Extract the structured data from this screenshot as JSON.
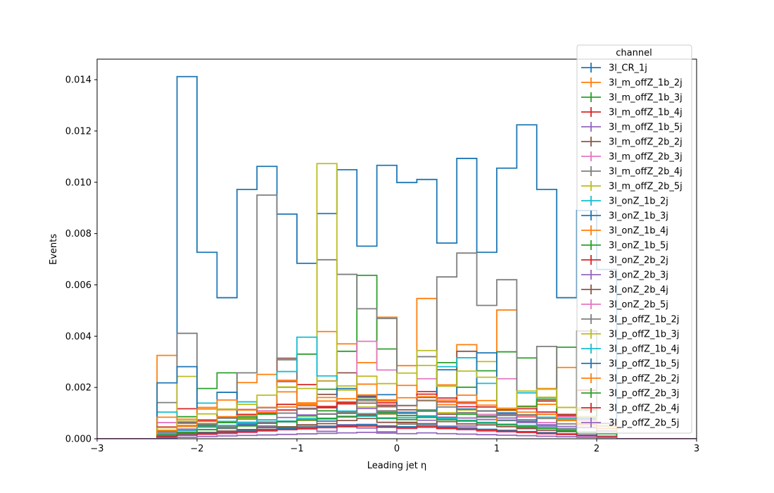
{
  "chart_data": {
    "type": "line",
    "title": "",
    "xlabel": "Leading jet  η",
    "ylabel": "Events",
    "xlim": [
      -3,
      3
    ],
    "ylim": [
      0,
      0.0148
    ],
    "grid": false,
    "legend_title": "channel",
    "legend_position": "top-right",
    "xticks": [
      -3,
      -2,
      -1,
      0,
      1,
      2,
      3
    ],
    "xtick_labels": [
      "−3",
      "−2",
      "−1",
      "0",
      "1",
      "2",
      "3"
    ],
    "yticks": [
      0,
      0.002,
      0.004,
      0.006,
      0.008,
      0.01,
      0.012,
      0.014
    ],
    "ytick_labels": [
      "0.000",
      "0.002",
      "0.004",
      "0.006",
      "0.008",
      "0.010",
      "0.012",
      "0.014"
    ],
    "bin_edges": [
      -3.0,
      -2.8,
      -2.6,
      -2.4,
      -2.2,
      -2.0,
      -1.8,
      -1.6,
      -1.4,
      -1.2,
      -1.0,
      -0.8,
      -0.6,
      -0.4,
      -0.2,
      0.0,
      0.2,
      0.4,
      0.6,
      0.8,
      1.0,
      1.2,
      1.4,
      1.6,
      1.8,
      2.0,
      2.2,
      2.4,
      2.6,
      2.8,
      3.0
    ],
    "series": [
      {
        "name": "3l_CR_1j",
        "color": "#1f77b4",
        "values": [
          0,
          0,
          0,
          0,
          0.01412,
          0.00727,
          0.0055,
          0.00972,
          0.01062,
          0.00876,
          0.00684,
          0.00878,
          0.01049,
          0.00751,
          0.01066,
          0.00999,
          0.01011,
          0.00763,
          0.01093,
          0.00727,
          0.01055,
          0.01224,
          0.00972,
          0.0055,
          0.0089,
          0.0066,
          0,
          0,
          0,
          0
        ]
      },
      {
        "name": "3l_m_offZ_1b_2j",
        "color": "#ff7f0e",
        "values": [
          0,
          0,
          0,
          0.00325,
          0.00076,
          0.00122,
          0.00113,
          0.00219,
          0.00251,
          0.00183,
          0.00135,
          0.00418,
          0.0037,
          0.00297,
          0.00474,
          0.00285,
          0.00547,
          0.0021,
          0.00367,
          0.00149,
          0.00502,
          0.0009,
          0.00196,
          0.00278,
          0.0012,
          0.0004,
          0,
          0,
          0,
          0
        ]
      },
      {
        "name": "3l_m_offZ_1b_3j",
        "color": "#2ca02c",
        "values": [
          0,
          0,
          0,
          0.00031,
          0.00086,
          0.00196,
          0.00257,
          0.00077,
          0.00049,
          0.00201,
          0.0033,
          0.00193,
          0.00341,
          0.00637,
          0.0035,
          0.00091,
          0.0015,
          0.00297,
          0.00201,
          0.00265,
          0.00339,
          0.00315,
          0.0016,
          0.00357,
          0.00076,
          0.0005,
          0,
          0,
          0,
          0
        ]
      },
      {
        "name": "3l_m_offZ_1b_4j",
        "color": "#d62728",
        "values": [
          0,
          0,
          0,
          0.0002,
          0.00117,
          0.00055,
          0.00063,
          0.00114,
          0.00122,
          0.00112,
          0.00211,
          0.00121,
          0.00136,
          0.00094,
          0.0014,
          0.00064,
          0.00184,
          0.00144,
          0.00125,
          0.00108,
          0.00071,
          0.00049,
          0.00147,
          0.00089,
          0.00189,
          0.0006,
          0,
          0,
          0,
          0
        ]
      },
      {
        "name": "3l_m_offZ_1b_5j",
        "color": "#9467bd",
        "values": [
          0,
          0,
          0,
          0.00012,
          0.0005,
          0.00036,
          0.0002,
          0.00036,
          0.0005,
          0.00223,
          0.00042,
          0.00029,
          0.00055,
          0.00042,
          0.00027,
          0.00075,
          0.00072,
          0.00045,
          0.0005,
          0.00075,
          0.00081,
          0.0004,
          0.0005,
          0.00036,
          0.00073,
          0.0003,
          0,
          0,
          0,
          0
        ]
      },
      {
        "name": "3l_m_offZ_2b_2j",
        "color": "#8c564b",
        "values": [
          0,
          0,
          0,
          0.00018,
          0.00032,
          0.00048,
          0.00027,
          0.00036,
          0.00044,
          0.00314,
          0.00129,
          0.00173,
          0.00257,
          0.00139,
          0.00125,
          0.00113,
          0.00161,
          0.00096,
          0.00341,
          0.00087,
          0.00096,
          0.00042,
          0.00104,
          0.00071,
          0.00045,
          0.0003,
          0,
          0,
          0,
          0
        ]
      },
      {
        "name": "3l_m_offZ_2b_3j",
        "color": "#e377c2",
        "values": [
          0,
          0,
          0,
          0.00063,
          0.00038,
          0.00074,
          0.00051,
          0.00059,
          0.00109,
          0.00041,
          0.00071,
          0.00226,
          0.00088,
          0.0038,
          0.00268,
          0.00057,
          0.00234,
          0.0005,
          0.00137,
          0.00095,
          0.00234,
          0.00085,
          0.00063,
          0.00086,
          0.00071,
          0.0004,
          0,
          0,
          0,
          0
        ]
      },
      {
        "name": "3l_m_offZ_2b_4j",
        "color": "#7f7f7f",
        "values": [
          0,
          0,
          0,
          0.00141,
          0.00411,
          0.00036,
          0.00048,
          0.00257,
          0.0095,
          0.00308,
          0.00049,
          0.00698,
          0.00641,
          0.00507,
          0.00469,
          0.00057,
          0.0032,
          0.00631,
          0.00724,
          0.0052,
          0.0062,
          0.00074,
          0.0036,
          0.0004,
          0.0042,
          0.0004,
          0,
          0,
          0,
          0
        ]
      },
      {
        "name": "3l_m_offZ_2b_5j",
        "color": "#bcbd22",
        "values": [
          0,
          0,
          0,
          0.00045,
          0.00243,
          0.00058,
          0.00084,
          0.00081,
          0.00063,
          0.0004,
          0.00072,
          0.01073,
          0.0019,
          0.00124,
          0.00096,
          0.00046,
          0.00344,
          0.00102,
          0.00112,
          0.00301,
          0.0011,
          0.00124,
          0.00193,
          0.00122,
          0.0006,
          0.0004,
          0,
          0,
          0,
          0
        ]
      },
      {
        "name": "3l_onZ_1b_2j",
        "color": "#17becf",
        "values": [
          0,
          0,
          0,
          0.00104,
          0.00065,
          0.00139,
          0.00068,
          0.00144,
          0.001,
          0.00262,
          0.00396,
          0.00245,
          0.00108,
          0.00088,
          0.00106,
          0.00104,
          0.0011,
          0.00281,
          0.00316,
          0.00216,
          0.00073,
          0.00179,
          0.00084,
          0.0008,
          0.00083,
          0.0005,
          0,
          0,
          0,
          0
        ]
      },
      {
        "name": "3l_onZ_1b_3j",
        "color": "#1f77b4",
        "values": [
          0,
          0,
          0,
          0.00218,
          0.00281,
          0.00058,
          0.00181,
          0.00054,
          0.00121,
          0.00066,
          0.00116,
          0.00069,
          0.00196,
          0.00166,
          0.00172,
          0.00101,
          0.00089,
          0.00269,
          0.00116,
          0.00335,
          0.00101,
          0.00068,
          0.00095,
          0.00031,
          0.0008,
          0.0004,
          0,
          0,
          0,
          0
        ]
      },
      {
        "name": "3l_onZ_1b_4j",
        "color": "#ff7f0e",
        "values": [
          0,
          0,
          0,
          0.00084,
          0.00052,
          0.00116,
          0.00151,
          0.00112,
          0.00122,
          0.00228,
          0.00131,
          0.00161,
          0.00144,
          0.00213,
          0.00147,
          0.00208,
          0.00148,
          0.00133,
          0.0017,
          0.00108,
          0.00054,
          0.00126,
          0.00134,
          0.00071,
          0.00062,
          0.0003,
          0,
          0,
          0,
          0
        ]
      },
      {
        "name": "3l_onZ_1b_5j",
        "color": "#2ca02c",
        "values": [
          0,
          0,
          0,
          0.00031,
          0.00048,
          0.00051,
          0.00063,
          0.00085,
          0.00096,
          0.00047,
          0.00089,
          0.00109,
          0.00099,
          0.00154,
          0.00102,
          0.00091,
          0.00112,
          0.00081,
          0.00096,
          0.00089,
          0.00091,
          0.00127,
          0.00153,
          0.00093,
          0.00113,
          0.0004,
          0,
          0,
          0,
          0
        ]
      },
      {
        "name": "3l_onZ_2b_2j",
        "color": "#d62728",
        "values": [
          0,
          0,
          0,
          0.00046,
          0.00061,
          0.00072,
          0.00083,
          0.00095,
          0.00101,
          0.00134,
          0.00118,
          0.00126,
          0.00141,
          0.00162,
          0.00131,
          0.00129,
          0.00174,
          0.00159,
          0.00142,
          0.00124,
          0.00113,
          0.00117,
          0.00104,
          0.00095,
          0.00086,
          0.0005,
          0,
          0,
          0,
          0
        ]
      },
      {
        "name": "3l_onZ_2b_3j",
        "color": "#9467bd",
        "values": [
          0,
          0,
          0,
          0.00021,
          0.00032,
          0.00045,
          0.0004,
          0.00059,
          0.00065,
          0.00083,
          0.00093,
          0.00097,
          0.00104,
          0.00118,
          0.00098,
          0.00099,
          0.00107,
          0.00084,
          0.00081,
          0.00084,
          0.00092,
          0.00063,
          0.00055,
          0.00048,
          0.00043,
          0.0003,
          0,
          0,
          0,
          0
        ]
      },
      {
        "name": "3l_onZ_2b_4j",
        "color": "#8c564b",
        "values": [
          0,
          0,
          0,
          0.0001,
          0.00021,
          0.00025,
          0.0003,
          0.00034,
          0.00043,
          0.00046,
          0.00055,
          0.00059,
          0.00071,
          0.00079,
          0.00064,
          0.00063,
          0.00059,
          0.00067,
          0.00058,
          0.00054,
          0.00047,
          0.0004,
          0.00033,
          0.00028,
          0.00022,
          0.0002,
          0,
          0,
          0,
          0
        ]
      },
      {
        "name": "3l_onZ_2b_5j",
        "color": "#e377c2",
        "values": [
          0,
          0,
          0,
          6e-05,
          0.00014,
          0.00017,
          0.0002,
          0.00024,
          0.0003,
          0.00035,
          0.00037,
          0.00043,
          0.00047,
          0.00051,
          0.00046,
          0.0004,
          0.00044,
          0.00039,
          0.00035,
          0.00029,
          0.00027,
          0.00024,
          0.00019,
          0.00017,
          0.00011,
          0.0001,
          0,
          0,
          0,
          0
        ]
      },
      {
        "name": "3l_p_offZ_1b_2j",
        "color": "#7f7f7f",
        "values": [
          0,
          0,
          0,
          0.00026,
          0.00037,
          0.00056,
          0.0008,
          0.00064,
          0.00073,
          0.001,
          0.00119,
          0.00096,
          0.00102,
          0.00148,
          0.00109,
          0.0013,
          0.0015,
          0.00124,
          0.00102,
          0.00109,
          0.00096,
          0.00094,
          0.00079,
          0.00058,
          0.00055,
          0.0004,
          0,
          0,
          0,
          0
        ]
      },
      {
        "name": "3l_p_offZ_1b_3j",
        "color": "#bcbd22",
        "values": [
          0,
          0,
          0,
          0.00043,
          0.00069,
          0.00097,
          0.00116,
          0.00134,
          0.0017,
          0.00202,
          0.00196,
          0.00225,
          0.00206,
          0.00244,
          0.00215,
          0.00256,
          0.00286,
          0.00205,
          0.00264,
          0.0024,
          0.00118,
          0.00186,
          0.00162,
          0.00122,
          0.00085,
          0.0005,
          0,
          0,
          0,
          0
        ]
      },
      {
        "name": "3l_p_offZ_1b_4j",
        "color": "#17becf",
        "values": [
          0,
          0,
          0,
          0.0002,
          0.00034,
          0.00045,
          0.00052,
          0.00064,
          0.00074,
          0.00069,
          0.0008,
          0.00077,
          0.00085,
          0.00098,
          0.00079,
          0.00083,
          0.00086,
          0.00079,
          0.00072,
          0.00064,
          0.00057,
          0.00052,
          0.00044,
          0.00036,
          0.00027,
          0.0002,
          0,
          0,
          0,
          0
        ]
      },
      {
        "name": "3l_p_offZ_1b_5j",
        "color": "#1f77b4",
        "values": [
          0,
          0,
          0,
          9e-05,
          0.00016,
          0.00021,
          0.00026,
          0.0003,
          0.00036,
          0.00041,
          0.00044,
          0.00049,
          0.00052,
          0.00056,
          0.0005,
          0.00047,
          0.00053,
          0.00046,
          0.00042,
          0.00037,
          0.00033,
          0.00028,
          0.00024,
          0.00019,
          0.00015,
          0.0001,
          0,
          0,
          0,
          0
        ]
      },
      {
        "name": "3l_p_offZ_2b_2j",
        "color": "#ff7f0e",
        "values": [
          0,
          0,
          0,
          0.00033,
          0.00049,
          0.00067,
          0.00086,
          0.00091,
          0.00103,
          0.00124,
          0.0014,
          0.00147,
          0.00156,
          0.00171,
          0.00152,
          0.0016,
          0.00164,
          0.00151,
          0.00144,
          0.00131,
          0.00119,
          0.00104,
          0.00096,
          0.00075,
          0.00057,
          0.0004,
          0,
          0,
          0,
          0
        ]
      },
      {
        "name": "3l_p_offZ_2b_3j",
        "color": "#2ca02c",
        "values": [
          0,
          0,
          0,
          0.00014,
          0.00025,
          0.00035,
          0.00043,
          0.0005,
          0.0006,
          0.00067,
          0.00074,
          0.0008,
          0.00086,
          0.00091,
          0.00081,
          0.00075,
          0.00083,
          0.00074,
          0.00069,
          0.00061,
          0.00054,
          0.00047,
          0.0004,
          0.00033,
          0.00025,
          0.0002,
          0,
          0,
          0,
          0
        ]
      },
      {
        "name": "3l_p_offZ_2b_4j",
        "color": "#d62728",
        "values": [
          0,
          0,
          0,
          8e-05,
          0.00014,
          0.00019,
          0.00023,
          0.00027,
          0.00032,
          0.00036,
          0.0004,
          0.00044,
          0.00047,
          0.0005,
          0.00045,
          0.00042,
          0.00047,
          0.00041,
          0.00037,
          0.00033,
          0.00029,
          0.00025,
          0.00021,
          0.00017,
          0.00013,
          0.0001,
          0,
          0,
          0,
          0
        ]
      },
      {
        "name": "3l_p_offZ_2b_5j",
        "color": "#9467bd",
        "values": [
          0,
          0,
          0,
          3e-05,
          6e-05,
          9e-05,
          0.00011,
          0.00013,
          0.00015,
          0.00017,
          0.00019,
          0.00021,
          0.00023,
          0.00025,
          0.00022,
          0.0002,
          0.00023,
          0.0002,
          0.00018,
          0.00016,
          0.00014,
          0.00012,
          0.0001,
          8e-05,
          6e-05,
          5e-05,
          0,
          0,
          0,
          0
        ]
      }
    ]
  }
}
